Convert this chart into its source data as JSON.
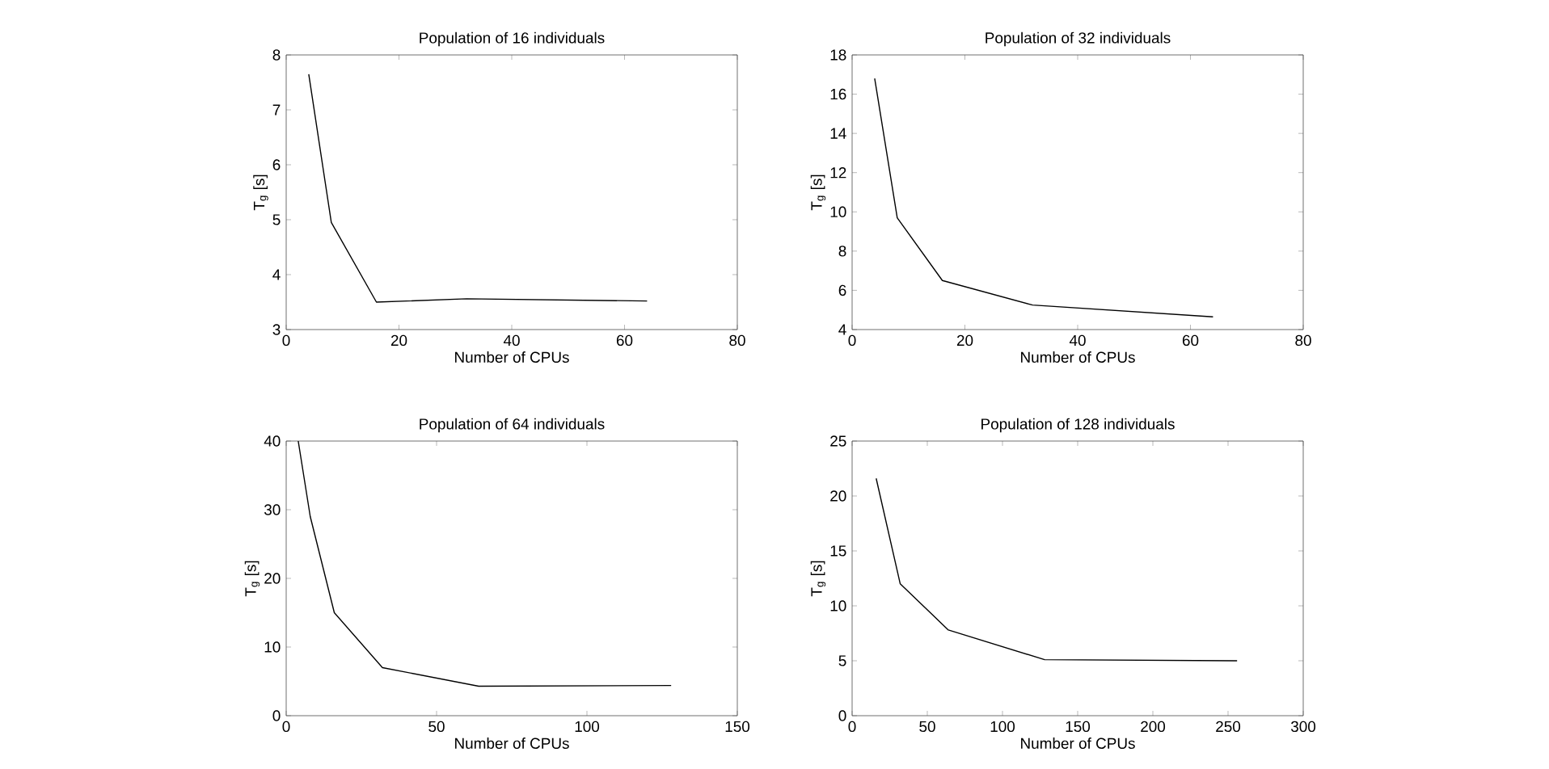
{
  "chart_data": [
    {
      "type": "line",
      "title": "Population of 16 individuals",
      "xlabel": "Number of CPUs",
      "ylabel": "T$_{g}$ [s]",
      "x": [
        4,
        8,
        16,
        32,
        64
      ],
      "values": [
        7.65,
        4.95,
        3.5,
        3.56,
        3.52
      ],
      "color": "#000000",
      "xlim": [
        0,
        80
      ],
      "ylim": [
        3,
        8
      ],
      "xticks": [
        0,
        20,
        40,
        60,
        80
      ],
      "yticks": [
        3,
        4,
        5,
        6,
        7,
        8
      ]
    },
    {
      "type": "line",
      "title": "Population of 32 individuals",
      "xlabel": "Number of CPUs",
      "ylabel": "T$_{g}$ [s]",
      "x": [
        4,
        8,
        16,
        32,
        64
      ],
      "values": [
        16.8,
        9.7,
        6.5,
        5.25,
        4.65
      ],
      "color": "#000000",
      "xlim": [
        0,
        80
      ],
      "ylim": [
        4,
        18
      ],
      "xticks": [
        0,
        20,
        40,
        60,
        80
      ],
      "yticks": [
        4,
        6,
        8,
        10,
        12,
        14,
        16,
        18
      ]
    },
    {
      "type": "line",
      "title": "Population of 64 individuals",
      "xlabel": "Number of CPUs",
      "ylabel": "T$_{g}$ [s]",
      "x": [
        4,
        8,
        16,
        32,
        64,
        128
      ],
      "values": [
        40,
        29,
        15,
        7,
        4.3,
        4.4
      ],
      "color": "#000000",
      "xlim": [
        0,
        150
      ],
      "ylim": [
        0,
        40
      ],
      "xticks": [
        0,
        50,
        100,
        150
      ],
      "yticks": [
        0,
        10,
        20,
        30,
        40
      ]
    },
    {
      "type": "line",
      "title": "Population of 128 individuals",
      "xlabel": "Number of CPUs",
      "ylabel": "T$_{g}$ [s]",
      "x": [
        16,
        32,
        64,
        128,
        256
      ],
      "values": [
        21.6,
        12,
        7.8,
        5.1,
        5.0
      ],
      "color": "#000000",
      "xlim": [
        0,
        300
      ],
      "ylim": [
        0,
        25
      ],
      "xticks": [
        0,
        50,
        100,
        150,
        200,
        250,
        300
      ],
      "yticks": [
        0,
        5,
        10,
        15,
        20,
        25
      ]
    }
  ]
}
